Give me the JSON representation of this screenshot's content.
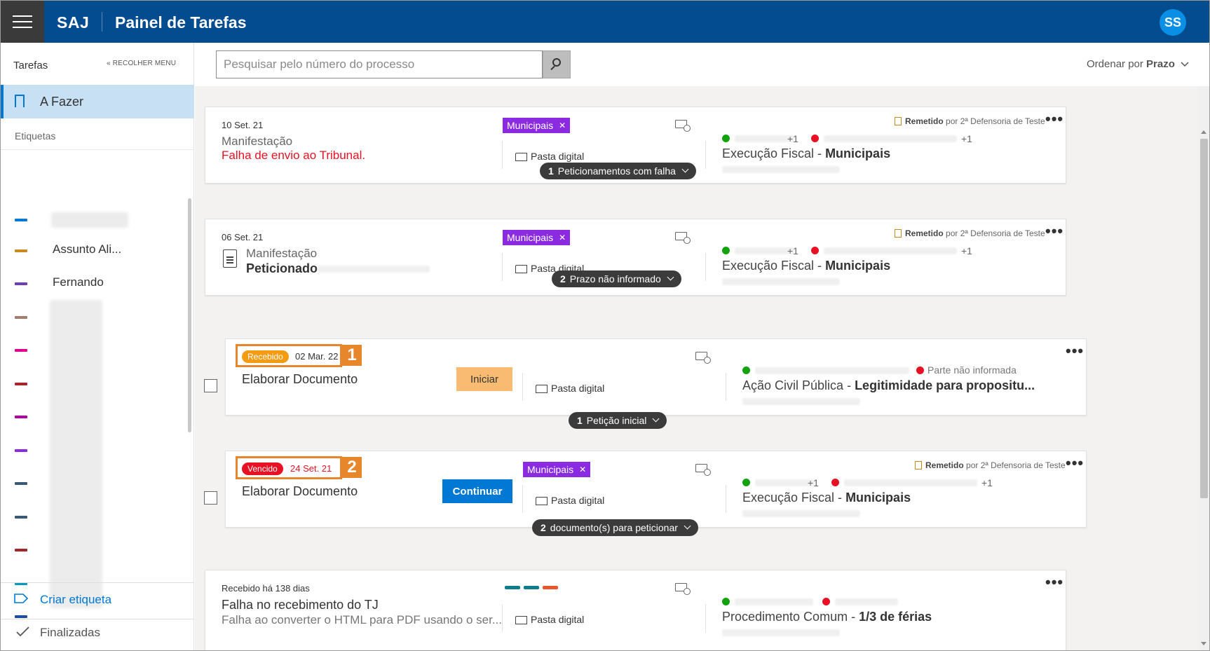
{
  "header": {
    "brand": "SAJ",
    "title": "Painel de Tarefas",
    "user_initials": "SS"
  },
  "sidebar": {
    "heading": "Tarefas",
    "collapse": "« RECOLHER MENU",
    "active_item": "A Fazer",
    "labels_heading": "Etiquetas",
    "tags": [
      {
        "name": "",
        "color": "#0078d4"
      },
      {
        "name": "Assunto Ali...",
        "color": "#c78a1c"
      },
      {
        "name": "Fernando",
        "color": "#6b3fb8"
      },
      {
        "name": "",
        "color": "#a37d6f"
      },
      {
        "name": "",
        "color": "#e3008c"
      },
      {
        "name": "",
        "color": "#a4262c"
      },
      {
        "name": "",
        "color": "#b4009e"
      },
      {
        "name": "",
        "color": "#8a2be2"
      },
      {
        "name": "",
        "color": "#3b5977"
      },
      {
        "name": "",
        "color": "#3b5977"
      },
      {
        "name": "",
        "color": "#a4262c"
      },
      {
        "name": "",
        "color": "#0099bc"
      },
      {
        "name": "",
        "color": "#1f4e9c"
      }
    ],
    "create_label": "Criar etiqueta",
    "finished_label": "Finalizadas"
  },
  "toolbar": {
    "search_placeholder": "Pesquisar pelo número do processo",
    "order_prefix": "Ordenar por ",
    "order_value": "Prazo"
  },
  "cards": [
    {
      "date": "10 Set. 21",
      "type": "Manifestação",
      "error": "Falha de envio ao Tribunal.",
      "tag": "Municipais",
      "folder": "Pasta digital",
      "sender_strong": "Remetido",
      "sender_rest": " por 2ª Defensoria de Teste",
      "plus_a": "+1",
      "plus_b": "+1",
      "process_class": "Execução Fiscal - ",
      "process_subject": "Municipais",
      "chip_count": "1",
      "chip_text": "Peticionamentos com falha"
    },
    {
      "date": "06 Set. 21",
      "type": "Manifestação",
      "title": "Peticionado",
      "tag": "Municipais",
      "folder": "Pasta digital",
      "sender_strong": "Remetido",
      "sender_rest": " por 2ª Defensoria de Teste",
      "plus_a": "+1",
      "plus_b": "+1",
      "process_class": "Execução Fiscal - ",
      "process_subject": "Municipais",
      "chip_count": "2",
      "chip_text": "Prazo não informado"
    },
    {
      "badge": "Recebido",
      "badge_color": "#f39c12",
      "date": "02 Mar. 22",
      "marker": "1",
      "title": "Elaborar Documento",
      "button": "Iniciar",
      "folder": "Pasta digital",
      "party_missing": "Parte não informada",
      "process_class": "Ação Civil Pública - ",
      "process_subject": "Legitimidade para propositu...",
      "chip_count": "1",
      "chip_text": "Petição inicial"
    },
    {
      "badge": "Vencido",
      "badge_color": "#e81123",
      "date": "24 Set. 21",
      "marker": "2",
      "title": "Elaborar Documento",
      "button": "Continuar",
      "tag": "Municipais",
      "folder": "Pasta digital",
      "sender_strong": "Remetido",
      "sender_rest": " por 2ª Defensoria de Teste",
      "plus_a": "+1",
      "plus_b": "+1",
      "process_class": "Execução Fiscal - ",
      "process_subject": "Municipais",
      "chip_count": "2",
      "chip_text": "documento(s) para peticionar"
    },
    {
      "date": "Recebido há 138 dias",
      "title": "Falha no recebimento do TJ",
      "subtitle": "Falha ao converter o HTML para PDF usando o ser...",
      "folder": "Pasta digital",
      "process_class": "Procedimento Comum - ",
      "process_subject": "1/3 de férias"
    }
  ],
  "colors": {
    "header_bg": "#024c8f",
    "accent": "#0078d4",
    "tag_purple": "#8a2be2",
    "highlight": "#e8862c"
  }
}
